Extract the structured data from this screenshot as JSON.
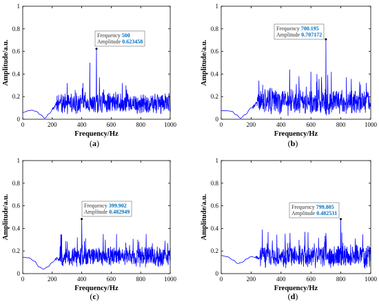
{
  "chart_data": [
    {
      "type": "line",
      "panel_label": "a",
      "xlabel": "Frequency/Hz",
      "ylabel": "Amplitude/a.u.",
      "xlim": [
        0,
        1000
      ],
      "ylim": [
        0,
        1
      ],
      "xticks": [
        0,
        200,
        400,
        600,
        800,
        1000
      ],
      "yticks": [
        0,
        0.2,
        0.4,
        0.6,
        0.8,
        1
      ],
      "line_color": "#0000ff",
      "baseline_curve": [
        [
          0,
          0.06
        ],
        [
          40,
          0.075
        ],
        [
          60,
          0.08
        ],
        [
          90,
          0.07
        ],
        [
          120,
          0.04
        ],
        [
          150,
          0.01
        ],
        [
          180,
          0.05
        ],
        [
          210,
          0.1
        ],
        [
          230,
          0.14
        ]
      ],
      "noise": {
        "x_start": 230,
        "x_end": 1000,
        "mean": 0.14,
        "spread": 0.1,
        "max": 0.32
      },
      "extra_spikes": [
        [
          455,
          0.5
        ],
        [
          520,
          0.37
        ],
        [
          408,
          0.32
        ],
        [
          700,
          0.3
        ]
      ],
      "peak": {
        "x": 500,
        "y": 0.623458
      },
      "tooltip": {
        "frequency_label": "Frequency",
        "frequency_value": "500",
        "amplitude_label": "Amplitude",
        "amplitude_value": "0.623458"
      }
    },
    {
      "type": "line",
      "panel_label": "b",
      "xlabel": "Frequency/Hz",
      "ylabel": "Amplitude/a.u.",
      "xlim": [
        0,
        1000
      ],
      "ylim": [
        0,
        1
      ],
      "xticks": [
        0,
        200,
        400,
        600,
        800,
        1000
      ],
      "yticks": [
        0,
        0.2,
        0.4,
        0.6,
        0.8,
        1
      ],
      "line_color": "#0000ff",
      "baseline_curve": [
        [
          0,
          0.075
        ],
        [
          40,
          0.075
        ],
        [
          70,
          0.07
        ],
        [
          100,
          0.04
        ],
        [
          130,
          0.01
        ],
        [
          160,
          0.04
        ],
        [
          200,
          0.1
        ],
        [
          240,
          0.14
        ]
      ],
      "noise": {
        "x_start": 240,
        "x_end": 1000,
        "mean": 0.15,
        "spread": 0.12,
        "max": 0.42
      },
      "extra_spikes": [
        [
          458,
          0.44
        ],
        [
          520,
          0.38
        ],
        [
          600,
          0.42
        ],
        [
          640,
          0.4
        ]
      ],
      "peak": {
        "x": 700.195,
        "y": 0.707172
      },
      "tooltip": {
        "frequency_label": "Frequency",
        "frequency_value": "700.195",
        "amplitude_label": "Amplitude",
        "amplitude_value": "0.707172"
      }
    },
    {
      "type": "line",
      "panel_label": "c",
      "xlabel": "Frequency/Hz",
      "ylabel": "Amplitude/a.u.",
      "xlim": [
        0,
        1000
      ],
      "ylim": [
        0,
        1
      ],
      "xticks": [
        0,
        200,
        400,
        600,
        800,
        1000
      ],
      "yticks": [
        0,
        0.2,
        0.4,
        0.6,
        0.8,
        1
      ],
      "line_color": "#0000ff",
      "baseline_curve": [
        [
          0,
          0.145
        ],
        [
          40,
          0.14
        ],
        [
          80,
          0.11
        ],
        [
          110,
          0.06
        ],
        [
          140,
          0.04
        ],
        [
          170,
          0.06
        ],
        [
          200,
          0.1
        ],
        [
          230,
          0.13
        ],
        [
          250,
          0.13
        ]
      ],
      "noise": {
        "x_start": 250,
        "x_end": 1000,
        "mean": 0.15,
        "spread": 0.1,
        "max": 0.35
      },
      "extra_spikes": [
        [
          370,
          0.32
        ],
        [
          560,
          0.3
        ],
        [
          780,
          0.3
        ]
      ],
      "peak": {
        "x": 399.902,
        "y": 0.482949
      },
      "tooltip": {
        "frequency_label": "Frequency",
        "frequency_value": "399.902",
        "amplitude_label": "Amplitude",
        "amplitude_value": "0.482949"
      }
    },
    {
      "type": "line",
      "panel_label": "d",
      "xlabel": "Frequency/Hz",
      "ylabel": "Amplitude/a.u.",
      "xlim": [
        0,
        1000
      ],
      "ylim": [
        0,
        1
      ],
      "xticks": [
        0,
        200,
        400,
        600,
        800,
        1000
      ],
      "yticks": [
        0,
        0.2,
        0.4,
        0.6,
        0.8,
        1
      ],
      "line_color": "#0000ff",
      "baseline_curve": [
        [
          0,
          0.16
        ],
        [
          40,
          0.15
        ],
        [
          80,
          0.12
        ],
        [
          110,
          0.09
        ],
        [
          140,
          0.1
        ],
        [
          170,
          0.13
        ],
        [
          200,
          0.15
        ],
        [
          240,
          0.14
        ],
        [
          260,
          0.14
        ]
      ],
      "noise": {
        "x_start": 260,
        "x_end": 1000,
        "mean": 0.15,
        "spread": 0.11,
        "max": 0.37
      },
      "extra_spikes": [
        [
          275,
          0.39
        ],
        [
          460,
          0.36
        ],
        [
          560,
          0.37
        ],
        [
          700,
          0.36
        ]
      ],
      "peak": {
        "x": 799.805,
        "y": 0.482531
      },
      "tooltip": {
        "frequency_label": "Frequency",
        "frequency_value": "799.805",
        "amplitude_label": "Amplitude",
        "amplitude_value": "0.482531"
      }
    }
  ],
  "colors": {
    "axis": "#000000",
    "signal": "#0000ff",
    "tooltip_value": "#0070c0",
    "tooltip_border": "#7f7f7f"
  }
}
